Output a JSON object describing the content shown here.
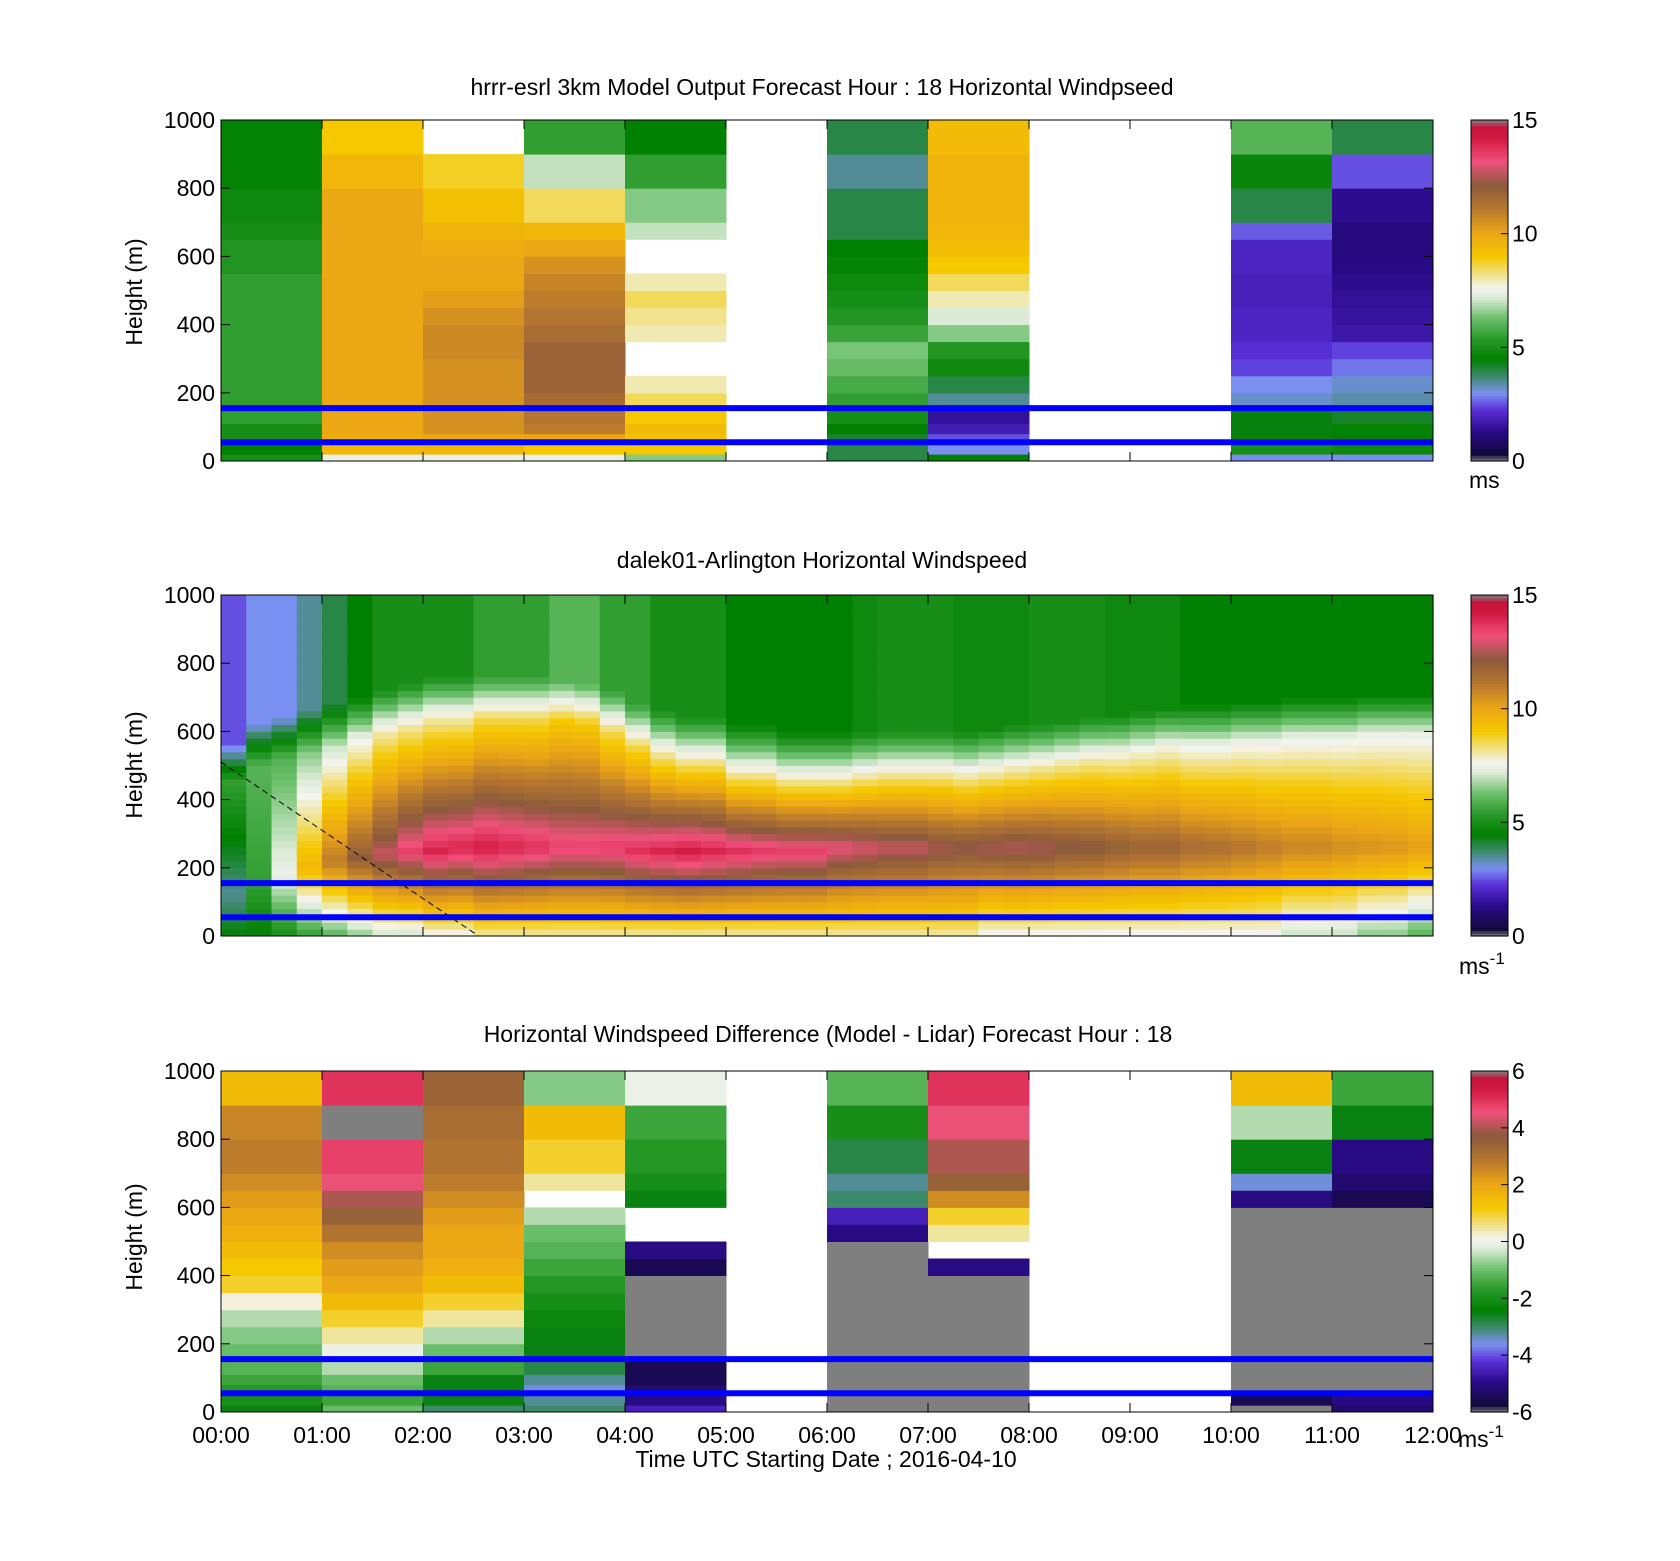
{
  "chart_data": [
    {
      "type": "heatmap",
      "title": "hrrr-esrl 3km Model Output   Forecast Hour : 18 Horizontal Windpseed",
      "ylabel": "Height (m)",
      "ylim": [
        0,
        1000
      ],
      "yticks": [
        "0",
        "200",
        "400",
        "600",
        "800",
        "1000"
      ],
      "xlim": [
        0,
        12
      ],
      "x_tick_positions": [
        0,
        1,
        2,
        3,
        4,
        5,
        6,
        7,
        8,
        9,
        10,
        11,
        12
      ],
      "show_x_tick_labels": false,
      "colorbar": {
        "min": 0,
        "max": 15,
        "ticks": [
          "0",
          "5",
          "10",
          "15"
        ],
        "unit": "ms",
        "unit_sup": "",
        "scale": "speed"
      },
      "reference_lines_m": [
        55,
        155
      ],
      "reference_line_color": "#0000ff",
      "bin_edges_m": [
        0,
        20,
        50,
        80,
        110,
        150,
        200,
        250,
        300,
        350,
        400,
        450,
        500,
        550,
        600,
        650,
        700,
        800,
        900,
        1000
      ],
      "columns": [
        {
          "x0": 0,
          "x1": 1,
          "values": [
            5.0,
            4.5,
            5.0,
            5.0,
            5.5,
            5.5,
            5.5,
            5.5,
            5.5,
            5.5,
            5.5,
            5.5,
            5.5,
            5.2,
            5.2,
            5.0,
            4.8,
            4.6,
            4.6
          ]
        },
        {
          "x0": 1,
          "x1": 2,
          "values": [
            7.5,
            9.5,
            9.8,
            10.0,
            10.0,
            10.0,
            10.0,
            10.0,
            10.0,
            10.0,
            10.0,
            10.0,
            10.0,
            10.0,
            10.0,
            10.0,
            10.0,
            9.5,
            9.0
          ]
        },
        {
          "x0": 2,
          "x1": 3,
          "values": [
            7.5,
            9.5,
            10.0,
            10.5,
            10.5,
            10.5,
            10.5,
            10.5,
            10.7,
            10.7,
            10.5,
            10.2,
            10.0,
            10.0,
            9.8,
            9.6,
            9.2,
            8.8,
            "na"
          ]
        },
        {
          "x0": 3,
          "x1": 4,
          "values": [
            7.5,
            9.0,
            10.0,
            11.0,
            11.2,
            11.5,
            11.8,
            11.8,
            11.8,
            11.5,
            11.2,
            11.0,
            10.8,
            10.5,
            10.0,
            9.5,
            8.5,
            7.0,
            5.5
          ]
        },
        {
          "x0": 4,
          "x1": 5,
          "values": [
            6.5,
            9.0,
            9.2,
            9.4,
            9.0,
            8.5,
            8.0,
            "na",
            "na",
            8.0,
            8.2,
            8.5,
            8.0,
            "na",
            "na",
            7.0,
            6.5,
            5.5,
            4.5
          ]
        },
        {
          "x0": 6,
          "x1": 7,
          "values": [
            4.0,
            4.0,
            4.2,
            4.5,
            5.0,
            5.5,
            5.8,
            6.2,
            6.4,
            5.6,
            5.2,
            5.0,
            4.8,
            4.6,
            4.5,
            4.0,
            4.0,
            3.5,
            4.0
          ]
        },
        {
          "x0": 7,
          "x1": 8,
          "values": [
            4.5,
            3.0,
            2.5,
            1.8,
            1.5,
            3.5,
            4.0,
            4.8,
            5.2,
            6.5,
            7.2,
            8.0,
            8.5,
            9.0,
            9.3,
            9.5,
            9.6,
            9.6,
            9.4
          ]
        },
        {
          "x0": 10,
          "x1": 11,
          "values": [
            3.0,
            5.0,
            4.6,
            4.4,
            4.4,
            3.2,
            3.0,
            2.4,
            2.2,
            2.0,
            2.0,
            1.9,
            1.9,
            2.0,
            2.0,
            2.6,
            4.0,
            4.7,
            6.0
          ]
        },
        {
          "x0": 11,
          "x1": 12,
          "values": [
            3.0,
            4.8,
            4.5,
            4.6,
            4.2,
            3.4,
            3.2,
            2.8,
            2.4,
            1.7,
            1.6,
            1.5,
            1.4,
            1.3,
            1.2,
            1.2,
            1.4,
            2.5,
            4.0
          ]
        }
      ]
    },
    {
      "type": "heatmap",
      "title": "dalek01-Arlington  Horizontal Windspeed",
      "ylabel": "Height (m)",
      "ylim": [
        0,
        1000
      ],
      "yticks": [
        "0",
        "200",
        "400",
        "600",
        "800",
        "1000"
      ],
      "xlim": [
        0,
        12
      ],
      "x_tick_positions": [
        0,
        1,
        2,
        3,
        4,
        5,
        6,
        7,
        8,
        9,
        10,
        11,
        12
      ],
      "show_x_tick_labels": false,
      "colorbar": {
        "min": 0,
        "max": 15,
        "ticks": [
          "0",
          "5",
          "10",
          "15"
        ],
        "unit": "ms",
        "unit_sup": "-1",
        "scale": "speed"
      },
      "reference_lines_m": [
        55,
        155
      ],
      "reference_line_color": "#0000ff",
      "data_end_hour": 12.0,
      "column_width_h": 0.25,
      "bin_height_m": 20,
      "profile_model": "low-level jet: speed(z) = base + (peak - base) * exp(-((z - peak_height)/jet_width)^2), column-wise values listed below",
      "jet_peak_speed": [
        3.5,
        5.5,
        7.5,
        9.5,
        11.0,
        12.0,
        12.8,
        13.5,
        14.0,
        14.0,
        14.2,
        14.0,
        13.8,
        13.5,
        13.5,
        13.6,
        13.8,
        14.0,
        14.2,
        14.0,
        13.8,
        13.6,
        13.5,
        13.5,
        13.2,
        13.0,
        12.8,
        12.8,
        12.5,
        12.4,
        12.5,
        12.6,
        12.5,
        12.3,
        12.2,
        12.0,
        11.8,
        11.8,
        11.5,
        11.4,
        11.2,
        11.0,
        10.8,
        10.8,
        10.6,
        10.5,
        10.4,
        10.2
      ],
      "jet_peak_height_m": [
        120,
        150,
        180,
        200,
        220,
        230,
        240,
        250,
        250,
        260,
        260,
        260,
        260,
        260,
        260,
        260,
        250,
        250,
        250,
        250,
        250,
        250,
        250,
        250,
        260,
        260,
        260,
        260,
        260,
        260,
        260,
        260,
        260,
        260,
        260,
        260,
        260,
        260,
        260,
        260,
        260,
        260,
        260,
        260,
        260,
        260,
        260,
        260
      ],
      "jet_top_m": [
        450,
        500,
        520,
        540,
        560,
        580,
        600,
        620,
        640,
        640,
        640,
        640,
        640,
        630,
        620,
        600,
        560,
        540,
        520,
        520,
        500,
        500,
        480,
        480,
        480,
        480,
        480,
        480,
        480,
        480,
        490,
        500,
        500,
        510,
        520,
        530,
        540,
        550,
        560,
        560,
        570,
        570,
        580,
        580,
        580,
        590,
        590,
        590
      ],
      "upper_speed": [
        2.5,
        3.0,
        3.0,
        3.5,
        4.0,
        4.5,
        5.0,
        5.0,
        5.0,
        5.0,
        5.5,
        5.5,
        5.5,
        6.0,
        6.0,
        5.5,
        5.5,
        5.0,
        5.0,
        5.0,
        4.5,
        4.5,
        4.5,
        4.5,
        4.5,
        4.8,
        5.0,
        5.0,
        5.0,
        4.8,
        4.8,
        4.8,
        5.0,
        5.0,
        5.0,
        4.8,
        4.8,
        4.8,
        4.5,
        4.5,
        4.5,
        4.5,
        4.5,
        4.5,
        4.5,
        4.5,
        4.5,
        4.5
      ],
      "surface_speed": [
        4.5,
        4.5,
        5.0,
        5.5,
        6.0,
        6.5,
        7.0,
        7.0,
        7.5,
        7.5,
        8.0,
        8.0,
        8.0,
        8.0,
        8.0,
        8.0,
        8.0,
        8.0,
        8.0,
        8.0,
        8.0,
        8.0,
        8.0,
        8.0,
        8.0,
        8.0,
        8.0,
        8.0,
        8.0,
        8.0,
        7.5,
        7.5,
        7.5,
        7.5,
        7.5,
        7.5,
        7.5,
        7.5,
        7.5,
        7.5,
        7.5,
        7.5,
        7.0,
        7.0,
        7.0,
        6.5,
        6.5,
        6.0
      ],
      "annotation_line": {
        "from": [
          0.0,
          510
        ],
        "to": [
          2.55,
          0
        ],
        "style": "dashed"
      }
    },
    {
      "type": "heatmap",
      "title": "Horizontal Windspeed Difference (Model - Lidar) Forecast Hour : 18",
      "ylabel": "Height (m)",
      "xlabel": "Time UTC  Starting Date ; 2016-04-10",
      "ylim": [
        0,
        1000
      ],
      "yticks": [
        "0",
        "200",
        "400",
        "600",
        "800",
        "1000"
      ],
      "xlim": [
        0,
        12
      ],
      "x_tick_positions": [
        0,
        1,
        2,
        3,
        4,
        5,
        6,
        7,
        8,
        9,
        10,
        11,
        12
      ],
      "xticks": [
        "00:00",
        "01:00",
        "02:00",
        "03:00",
        "04:00",
        "05:00",
        "06:00",
        "07:00",
        "08:00",
        "09:00",
        "10:00",
        "11:00",
        "12:00"
      ],
      "show_x_tick_labels": true,
      "colorbar": {
        "min": -6,
        "max": 6,
        "ticks": [
          "-6",
          "-4",
          "-2",
          "0",
          "2",
          "4",
          "6"
        ],
        "unit": "ms",
        "unit_sup": "-1",
        "scale": "diff"
      },
      "reference_lines_m": [
        55,
        155
      ],
      "reference_line_color": "#0000ff",
      "bin_edges_m": [
        0,
        20,
        50,
        80,
        110,
        150,
        200,
        250,
        300,
        350,
        400,
        450,
        500,
        550,
        600,
        650,
        700,
        800,
        900,
        1000
      ],
      "columns": [
        {
          "x0": 0,
          "x1": 1,
          "values": [
            -2.5,
            -2.0,
            -1.8,
            -1.5,
            -1.2,
            -1.0,
            -0.8,
            -0.5,
            0.2,
            1.0,
            1.2,
            1.5,
            1.8,
            2.0,
            2.2,
            2.5,
            2.8,
            2.6,
            1.5
          ]
        },
        {
          "x0": 1,
          "x1": 2,
          "values": [
            -1.0,
            -1.5,
            -1.2,
            -1.0,
            -0.5,
            0.0,
            0.5,
            1.0,
            1.5,
            2.0,
            2.2,
            2.5,
            3.0,
            3.5,
            4.0,
            4.5,
            4.8,
            "out",
            5.0
          ]
        },
        {
          "x0": 2,
          "x1": 3,
          "values": [
            -3.0,
            -2.5,
            -2.5,
            -2.5,
            -1.5,
            -1.0,
            -0.5,
            0.5,
            1.0,
            1.5,
            1.8,
            2.0,
            2.0,
            2.2,
            2.5,
            2.8,
            3.0,
            3.2,
            3.4
          ]
        },
        {
          "x0": 3,
          "x1": 4,
          "values": [
            -3.0,
            -3.2,
            -3.5,
            -3.2,
            -2.8,
            -2.5,
            -2.5,
            -2.2,
            -2.0,
            -1.8,
            -1.5,
            -1.2,
            -1.0,
            -0.5,
            "na",
            0.5,
            1.0,
            1.5,
            -0.8
          ]
        },
        {
          "x0": 4,
          "x1": 5,
          "values": [
            -4.5,
            -5.0,
            -5.2,
            -5.5,
            -5.5,
            "out",
            "out",
            "out",
            "out",
            "out",
            -5.5,
            -5.0,
            "na",
            "na",
            -2.5,
            -2.0,
            -1.8,
            -1.5,
            0.0
          ]
        },
        {
          "x0": 6,
          "x1": 7,
          "values": [
            "out",
            "out",
            "out",
            "out",
            "out",
            "out",
            "out",
            "out",
            "out",
            "out",
            "out",
            "out",
            -5.0,
            -4.5,
            -3.0,
            -3.2,
            -2.8,
            -2.0,
            -1.2
          ]
        },
        {
          "x0": 7,
          "x1": 8,
          "values": [
            "out",
            "out",
            "out",
            "out",
            "out",
            "out",
            "out",
            "out",
            "out",
            "out",
            -5.0,
            "na",
            0.5,
            1.0,
            2.5,
            3.5,
            4.0,
            4.5,
            5.0
          ]
        },
        {
          "x0": 10,
          "x1": 11,
          "values": [
            -6.0,
            -5.5,
            "out",
            "out",
            "out",
            "out",
            "out",
            "out",
            "out",
            "out",
            "out",
            "out",
            "out",
            "out",
            -5.0,
            -3.5,
            -2.5,
            -0.5,
            1.5
          ]
        },
        {
          "x0": 11,
          "x1": 12,
          "values": [
            -5.2,
            -5.0,
            "out",
            "out",
            "out",
            "out",
            "out",
            "out",
            "out",
            "out",
            "out",
            "out",
            "out",
            "out",
            -5.5,
            -5.2,
            -5.0,
            -2.5,
            -1.5
          ]
        }
      ]
    }
  ]
}
